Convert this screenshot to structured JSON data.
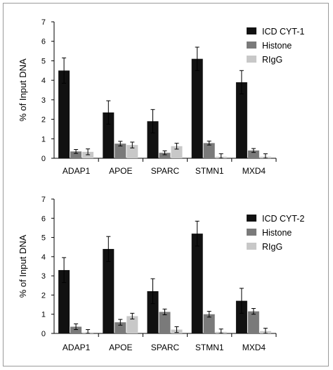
{
  "colors": {
    "ICD": "#111111",
    "Histone": "#7a7a7a",
    "RIgG": "#c8c8c8",
    "axis": "#000000",
    "error": "#000000"
  },
  "chart_data": [
    {
      "type": "bar",
      "ylabel": "% of Input DNA",
      "ylim": [
        0,
        7
      ],
      "yticks": [
        "0",
        "1",
        "2",
        "3",
        "4",
        "5",
        "6",
        "7"
      ],
      "categories": [
        "ADAP1",
        "APOE",
        "SPARC",
        "STMN1",
        "MXD4"
      ],
      "legend_position": "top-right",
      "grid": false,
      "series": [
        {
          "name": "ICD CYT-1",
          "color_key": "ICD",
          "values": [
            4.5,
            2.35,
            1.9,
            5.1,
            3.9
          ],
          "errors": [
            0.65,
            0.6,
            0.6,
            0.6,
            0.6
          ]
        },
        {
          "name": "Histone",
          "color_key": "Histone",
          "values": [
            0.35,
            0.75,
            0.28,
            0.78,
            0.4
          ],
          "errors": [
            0.1,
            0.12,
            0.1,
            0.1,
            0.1
          ]
        },
        {
          "name": "RIgG",
          "color_key": "RIgG",
          "values": [
            0.33,
            0.68,
            0.62,
            0.08,
            0.08
          ],
          "errors": [
            0.15,
            0.15,
            0.15,
            0.15,
            0.15
          ]
        }
      ]
    },
    {
      "type": "bar",
      "ylabel": "% of Input DNA",
      "ylim": [
        0,
        7
      ],
      "yticks": [
        "0",
        "1",
        "2",
        "3",
        "4",
        "5",
        "6",
        "7"
      ],
      "categories": [
        "ADAP1",
        "APOE",
        "SPARC",
        "STMN1",
        "MXD4"
      ],
      "legend_position": "top-right",
      "grid": false,
      "series": [
        {
          "name": "ICD CYT-2",
          "color_key": "ICD",
          "values": [
            3.3,
            4.4,
            2.2,
            5.2,
            1.7
          ],
          "errors": [
            0.65,
            0.65,
            0.65,
            0.65,
            0.65
          ]
        },
        {
          "name": "Histone",
          "color_key": "Histone",
          "values": [
            0.35,
            0.58,
            1.12,
            1.0,
            1.15
          ],
          "errors": [
            0.15,
            0.15,
            0.15,
            0.15,
            0.15
          ]
        },
        {
          "name": "RIgG",
          "color_key": "RIgG",
          "values": [
            0.05,
            0.9,
            0.2,
            0.08,
            0.12
          ],
          "errors": [
            0.15,
            0.15,
            0.15,
            0.15,
            0.15
          ]
        }
      ]
    }
  ]
}
